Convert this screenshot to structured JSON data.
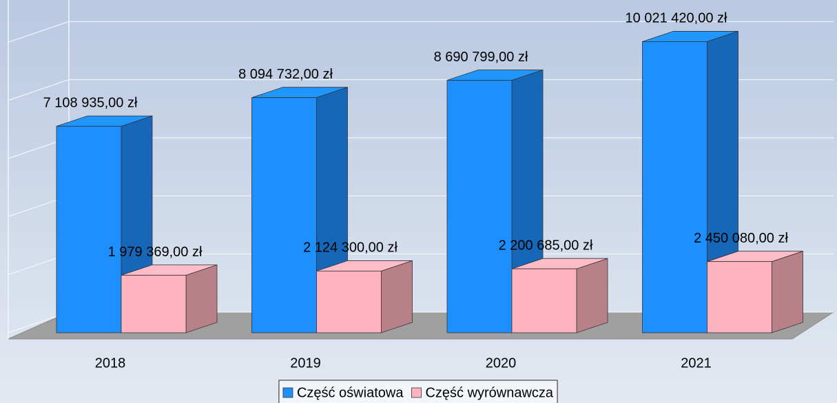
{
  "chart_data": {
    "type": "bar3d",
    "categories": [
      "2018",
      "2019",
      "2020",
      "2021"
    ],
    "series": [
      {
        "name": "Część oświatowa",
        "color": "#1e8fff",
        "values": [
          7108935,
          8094732,
          8690799,
          10021420
        ],
        "value_labels": [
          "7 108 935,00 zł",
          "8 094 732,00 zł",
          "8 690 799,00 zł",
          "10 021 420,00 zł"
        ]
      },
      {
        "name": "Część wyrównawcza",
        "color": "#ffb3bf",
        "values": [
          1979369,
          2124300,
          2200685,
          2450080
        ],
        "value_labels": [
          "1 979 369,00 zł",
          "2 124 300,00 zł",
          "2 200 685,00 zł",
          "2 450 080,00 zł"
        ]
      }
    ],
    "ylim": [
      0,
      12000000
    ],
    "yticks": [
      0,
      2000000,
      4000000,
      6000000,
      8000000,
      10000000,
      12000000
    ],
    "grid": true,
    "legend": "bottom"
  }
}
